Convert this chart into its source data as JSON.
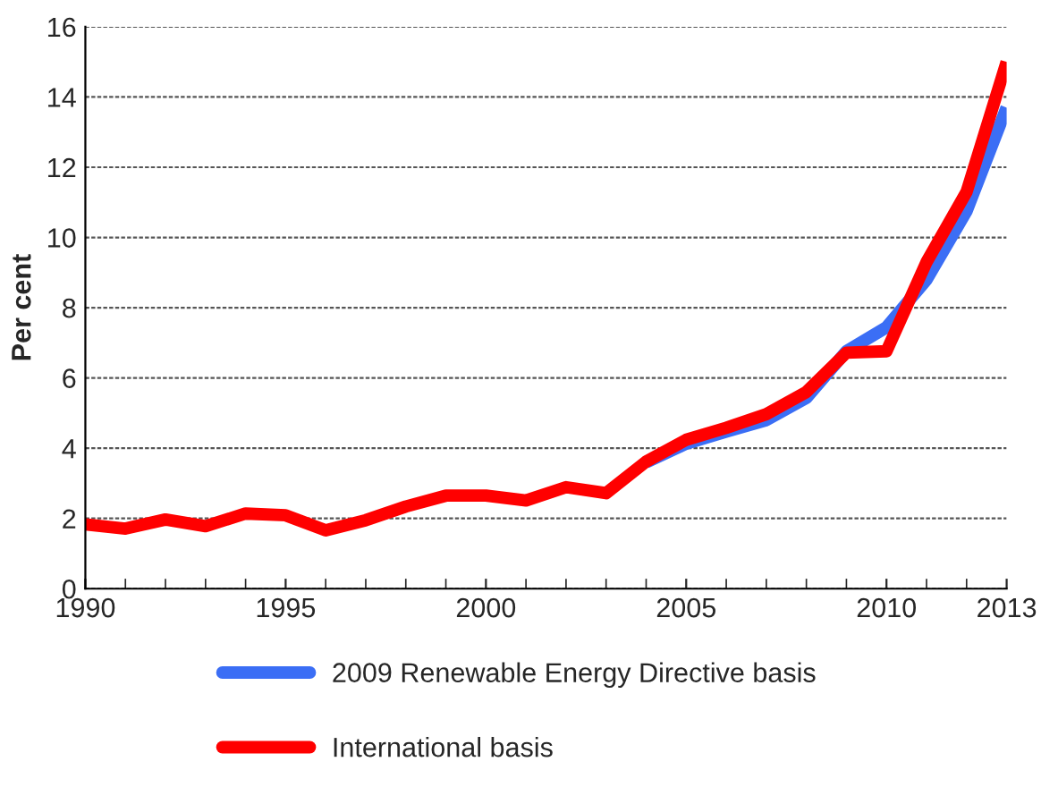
{
  "chart_data": {
    "type": "line",
    "ylabel": "Per cent",
    "x": [
      1990,
      1991,
      1992,
      1993,
      1994,
      1995,
      1996,
      1997,
      1998,
      1999,
      2000,
      2001,
      2002,
      2003,
      2004,
      2005,
      2006,
      2007,
      2008,
      2009,
      2010,
      2011,
      2012,
      2013
    ],
    "xlim": [
      1990,
      2013
    ],
    "xticks": [
      1990,
      1995,
      2000,
      2005,
      2010,
      2013
    ],
    "ylim": [
      0,
      16
    ],
    "yticks": [
      0,
      2,
      4,
      6,
      8,
      10,
      12,
      14,
      16
    ],
    "grid": "y",
    "legend": "bottom",
    "line_style": "solid",
    "series": [
      {
        "name": "2009 Renewable Energy Directive basis",
        "color": "#3b6ef5",
        "values": [
          null,
          null,
          null,
          null,
          null,
          null,
          null,
          null,
          null,
          null,
          null,
          null,
          null,
          null,
          3.6,
          4.13,
          4.47,
          4.8,
          5.43,
          6.76,
          7.44,
          8.8,
          10.75,
          13.7
        ]
      },
      {
        "name": "International basis",
        "color": "#ff0000",
        "values": [
          1.83,
          1.71,
          1.97,
          1.78,
          2.14,
          2.09,
          1.66,
          1.95,
          2.34,
          2.65,
          2.65,
          2.51,
          2.89,
          2.72,
          3.62,
          4.24,
          4.58,
          4.97,
          5.6,
          6.72,
          6.76,
          9.3,
          11.3,
          15.0
        ]
      }
    ]
  }
}
